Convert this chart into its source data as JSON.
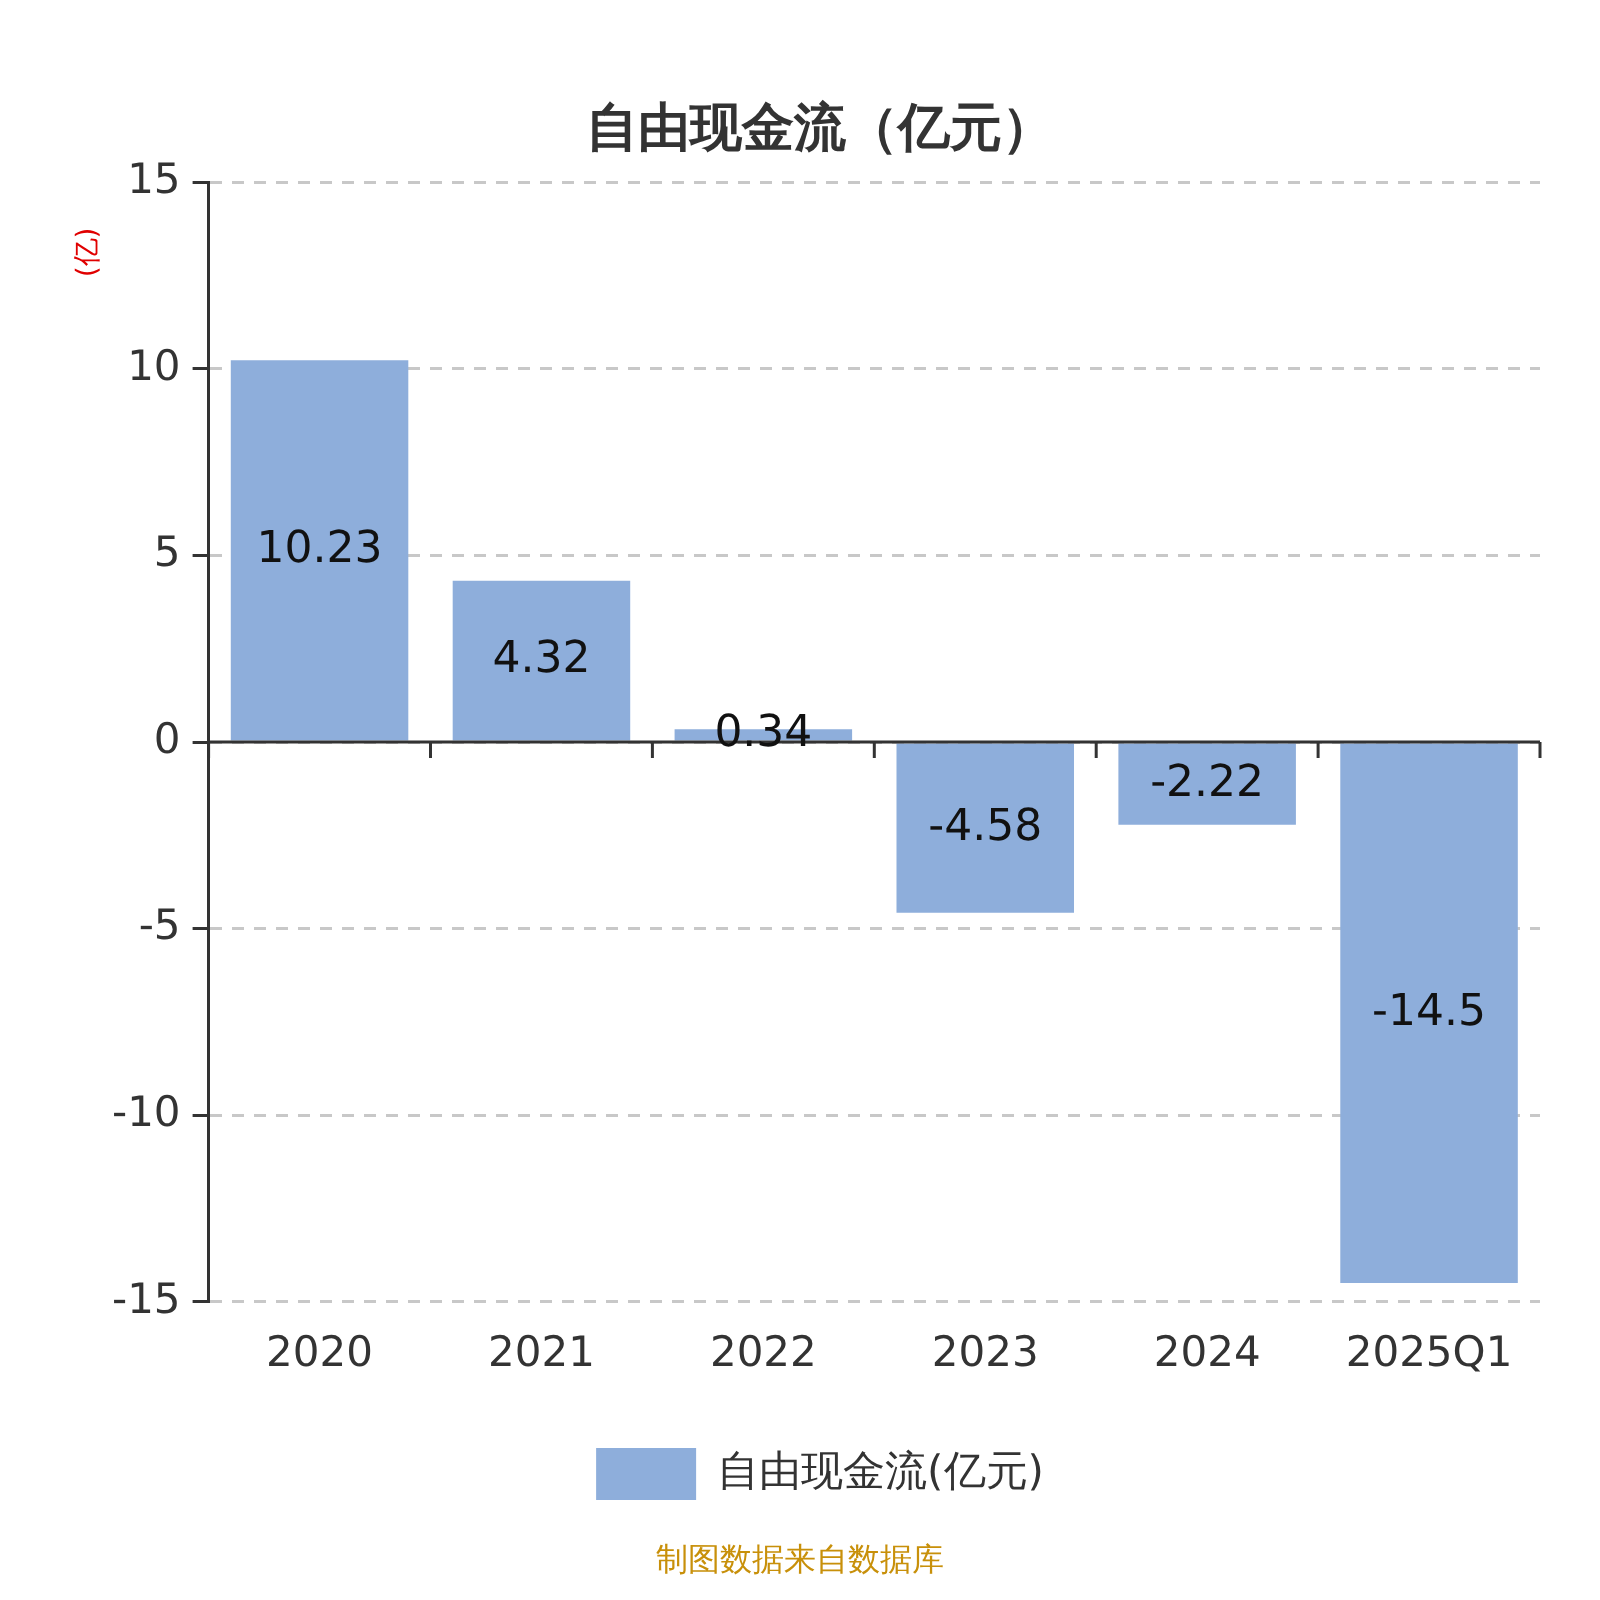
{
  "chart_data": {
    "type": "bar",
    "title": "自由现金流（亿元）",
    "ylabel": "(亿)",
    "categories": [
      "2020",
      "2021",
      "2022",
      "2023",
      "2024",
      "2025Q1"
    ],
    "series": [
      {
        "name": "自由现金流(亿元)",
        "color": "#8eaedb",
        "values": [
          10.23,
          4.32,
          0.34,
          -4.58,
          -2.22,
          -14.5
        ]
      }
    ],
    "ylim": [
      -15,
      15
    ],
    "yticks": [
      -15,
      -10,
      -5,
      0,
      5,
      10,
      15
    ],
    "grid": "y",
    "legend": "bottom",
    "data_labels": true,
    "annotations": [
      "制图数据来自数据库"
    ]
  }
}
